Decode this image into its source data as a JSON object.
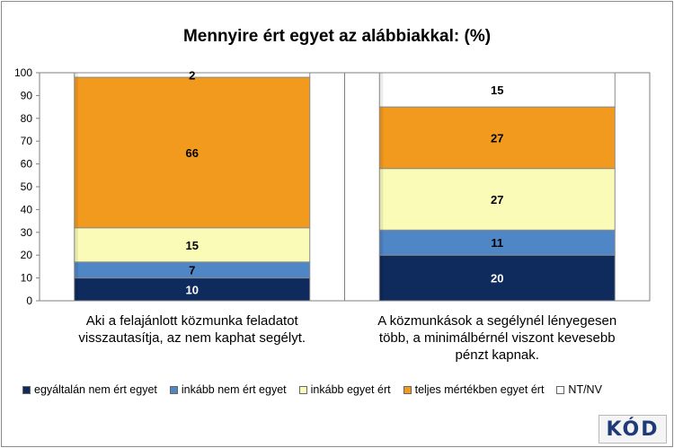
{
  "chart_data": {
    "type": "bar",
    "stacked": true,
    "title": "Mennyire ért egyet az alábbiakkal: (%)",
    "ylim": [
      0,
      100
    ],
    "yticks": [
      0,
      10,
      20,
      30,
      40,
      50,
      60,
      70,
      80,
      90,
      100
    ],
    "grid": false,
    "legend_position": "bottom",
    "categories": [
      [
        "Aki a felajánlott közmunka feladatot",
        "visszautasítja, az nem kaphat segélyt."
      ],
      [
        "A közmunkások a segélynél lényegesen",
        "több, a minimálbérnél viszont kevesebb",
        "pénzt kapnak."
      ]
    ],
    "series": [
      {
        "name": "egyáltalán nem ért egyet",
        "color": "#0f2a5c",
        "values": [
          10,
          20
        ]
      },
      {
        "name": "inkább nem ért egyet",
        "color": "#4f86c6",
        "values": [
          7,
          11
        ]
      },
      {
        "name": "inkább egyet ért",
        "color": "#fbfbb8",
        "values": [
          15,
          27
        ]
      },
      {
        "name": "teljes mértékben egyet ért",
        "color": "#f29a1e",
        "values": [
          66,
          27
        ]
      },
      {
        "name": "NT/NV",
        "color": "#ffffff",
        "values": [
          2,
          15
        ]
      }
    ]
  },
  "logo": {
    "text": "KÓD"
  }
}
